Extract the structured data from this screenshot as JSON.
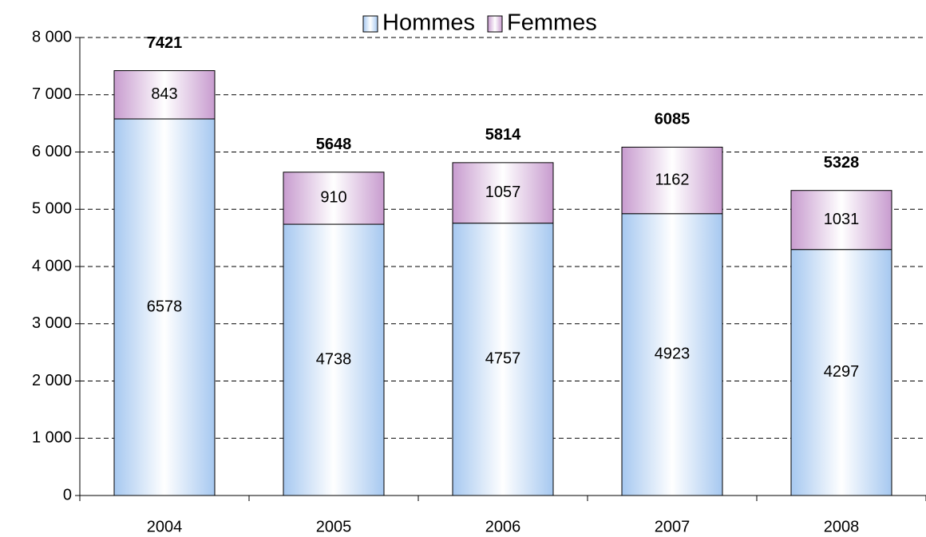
{
  "chart_data": {
    "type": "stacked_bar",
    "categories": [
      "2004",
      "2005",
      "2006",
      "2007",
      "2008"
    ],
    "series": [
      {
        "name": "Hommes",
        "color": "#a6c8f0",
        "values": [
          6578,
          4738,
          4757,
          4923,
          4297
        ]
      },
      {
        "name": "Femmes",
        "color": "#c89ccf",
        "values": [
          843,
          910,
          1057,
          1162,
          1031
        ]
      }
    ],
    "totals": [
      7421,
      5648,
      5814,
      6085,
      5328
    ],
    "ylim": [
      0,
      8000
    ],
    "yticks": [
      0,
      {
        "value": 1000,
        "label": "1 000"
      },
      {
        "value": 2000,
        "label": "2 000"
      },
      {
        "value": 3000,
        "label": "3 000"
      },
      {
        "value": 4000,
        "label": "4 000"
      },
      {
        "value": 5000,
        "label": "5 000"
      },
      {
        "value": 6000,
        "label": "6 000"
      },
      {
        "value": 7000,
        "label": "7 000"
      },
      {
        "value": 8000,
        "label": "8 000"
      }
    ],
    "grid": true,
    "legend": "top"
  }
}
